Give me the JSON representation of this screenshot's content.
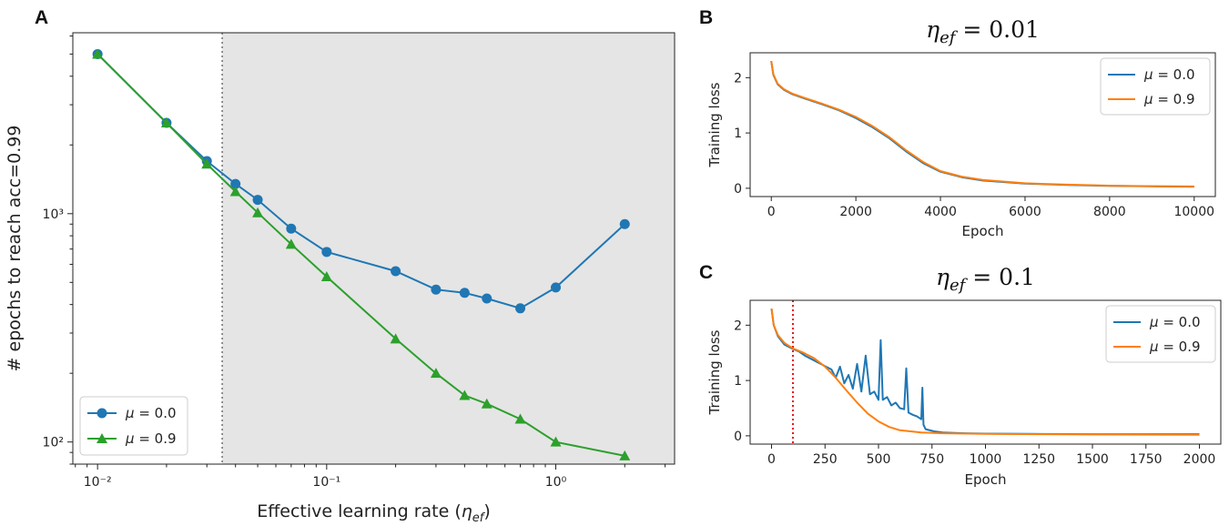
{
  "colors": {
    "blue": "#1f77b4",
    "orange": "#ff7f0e",
    "green": "#2ca02c",
    "shade": "#e5e5e5",
    "red": "#e8141a"
  },
  "panels": {
    "a": "A",
    "b": "B",
    "c": "C"
  },
  "chart_data": [
    {
      "id": "A",
      "type": "line",
      "xscale": "log",
      "yscale": "log",
      "xlabel": "Effective learning rate (η_ef)",
      "ylabel": "# epochs to reach acc=0.99",
      "xlim": [
        0.0078,
        3.3
      ],
      "ylim": [
        80,
        6200
      ],
      "xticks": [
        {
          "value": 0.01,
          "label": "10⁻²"
        },
        {
          "value": 0.1,
          "label": "10⁻¹"
        },
        {
          "value": 1,
          "label": "10⁰"
        }
      ],
      "yticks": [
        {
          "value": 100,
          "label": "10²"
        },
        {
          "value": 1000,
          "label": "10³"
        }
      ],
      "shaded_from": 0.035,
      "vline": 0.035,
      "legend_location": "lower-left",
      "series": [
        {
          "name": "μ = 0.0",
          "color": "#1f77b4",
          "marker": "circle",
          "x": [
            0.01,
            0.02,
            0.03,
            0.04,
            0.05,
            0.07,
            0.1,
            0.2,
            0.3,
            0.4,
            0.5,
            0.7,
            1.0,
            2.0
          ],
          "y": [
            5000,
            2500,
            1700,
            1350,
            1150,
            860,
            680,
            560,
            465,
            450,
            425,
            385,
            475,
            900
          ]
        },
        {
          "name": "μ = 0.9",
          "color": "#2ca02c",
          "marker": "triangle",
          "x": [
            0.01,
            0.02,
            0.03,
            0.04,
            0.05,
            0.07,
            0.1,
            0.2,
            0.3,
            0.4,
            0.5,
            0.7,
            1.0,
            2.0
          ],
          "y": [
            5000,
            2500,
            1650,
            1250,
            1010,
            735,
            530,
            283,
            200,
            160,
            147,
            126,
            100,
            87
          ]
        }
      ]
    },
    {
      "id": "B",
      "type": "line",
      "title": "η_ef = 0.01",
      "xlabel": "Epoch",
      "ylabel": "Training loss",
      "xlim": [
        -500,
        10500
      ],
      "ylim": [
        -0.15,
        2.45
      ],
      "xticks": [
        0,
        2000,
        4000,
        6000,
        8000,
        10000
      ],
      "yticks": [
        0,
        1,
        2
      ],
      "legend_location": "upper-right",
      "series": [
        {
          "name": "μ = 0.0",
          "color": "#1f77b4",
          "x": [
            0,
            50,
            150,
            300,
            500,
            800,
            1200,
            1600,
            2000,
            2400,
            2800,
            3200,
            3600,
            4000,
            4500,
            5000,
            6000,
            7000,
            8000,
            9000,
            10000
          ],
          "y": [
            2.3,
            2.05,
            1.88,
            1.78,
            1.7,
            1.62,
            1.52,
            1.41,
            1.27,
            1.1,
            0.9,
            0.66,
            0.45,
            0.3,
            0.2,
            0.14,
            0.085,
            0.06,
            0.045,
            0.035,
            0.03
          ]
        },
        {
          "name": "μ = 0.9",
          "color": "#ff7f0e",
          "x": [
            0,
            50,
            150,
            300,
            500,
            800,
            1200,
            1600,
            2000,
            2400,
            2800,
            3200,
            3600,
            4000,
            4500,
            5000,
            6000,
            7000,
            8000,
            9000,
            10000
          ],
          "y": [
            2.3,
            2.06,
            1.89,
            1.79,
            1.71,
            1.63,
            1.53,
            1.42,
            1.29,
            1.12,
            0.92,
            0.68,
            0.47,
            0.31,
            0.21,
            0.15,
            0.09,
            0.065,
            0.048,
            0.038,
            0.032
          ]
        }
      ]
    },
    {
      "id": "C",
      "type": "line",
      "title": "η_ef = 0.1",
      "xlabel": "Epoch",
      "ylabel": "Training loss",
      "xlim": [
        -100,
        2100
      ],
      "ylim": [
        -0.15,
        2.45
      ],
      "xticks": [
        0,
        250,
        500,
        750,
        1000,
        1250,
        1500,
        1750,
        2000
      ],
      "yticks": [
        0,
        1,
        2
      ],
      "vline": 100,
      "legend_location": "upper-right",
      "series": [
        {
          "name": "μ = 0.0",
          "color": "#1f77b4",
          "x": [
            0,
            10,
            30,
            60,
            100,
            130,
            160,
            200,
            240,
            280,
            300,
            320,
            340,
            360,
            380,
            400,
            420,
            440,
            460,
            480,
            500,
            510,
            520,
            540,
            560,
            580,
            600,
            620,
            630,
            640,
            660,
            680,
            700,
            705,
            710,
            720,
            760,
            800,
            900,
            1000,
            1200,
            1500,
            2000
          ],
          "y": [
            2.3,
            2.0,
            1.8,
            1.65,
            1.57,
            1.52,
            1.44,
            1.36,
            1.28,
            1.2,
            1.05,
            1.25,
            0.95,
            1.1,
            0.85,
            1.3,
            0.8,
            1.45,
            0.75,
            0.8,
            0.65,
            1.73,
            0.65,
            0.7,
            0.55,
            0.6,
            0.5,
            0.48,
            1.22,
            0.42,
            0.38,
            0.35,
            0.3,
            0.87,
            0.2,
            0.12,
            0.08,
            0.06,
            0.045,
            0.04,
            0.035,
            0.03,
            0.03
          ]
        },
        {
          "name": "μ = 0.9",
          "color": "#ff7f0e",
          "x": [
            0,
            10,
            30,
            60,
            100,
            150,
            200,
            250,
            300,
            350,
            400,
            450,
            500,
            550,
            600,
            700,
            800,
            1000,
            1250,
            1500,
            2000
          ],
          "y": [
            2.3,
            2.0,
            1.82,
            1.68,
            1.58,
            1.5,
            1.4,
            1.25,
            1.05,
            0.82,
            0.6,
            0.4,
            0.26,
            0.16,
            0.1,
            0.06,
            0.045,
            0.035,
            0.03,
            0.025,
            0.02
          ]
        }
      ]
    }
  ]
}
